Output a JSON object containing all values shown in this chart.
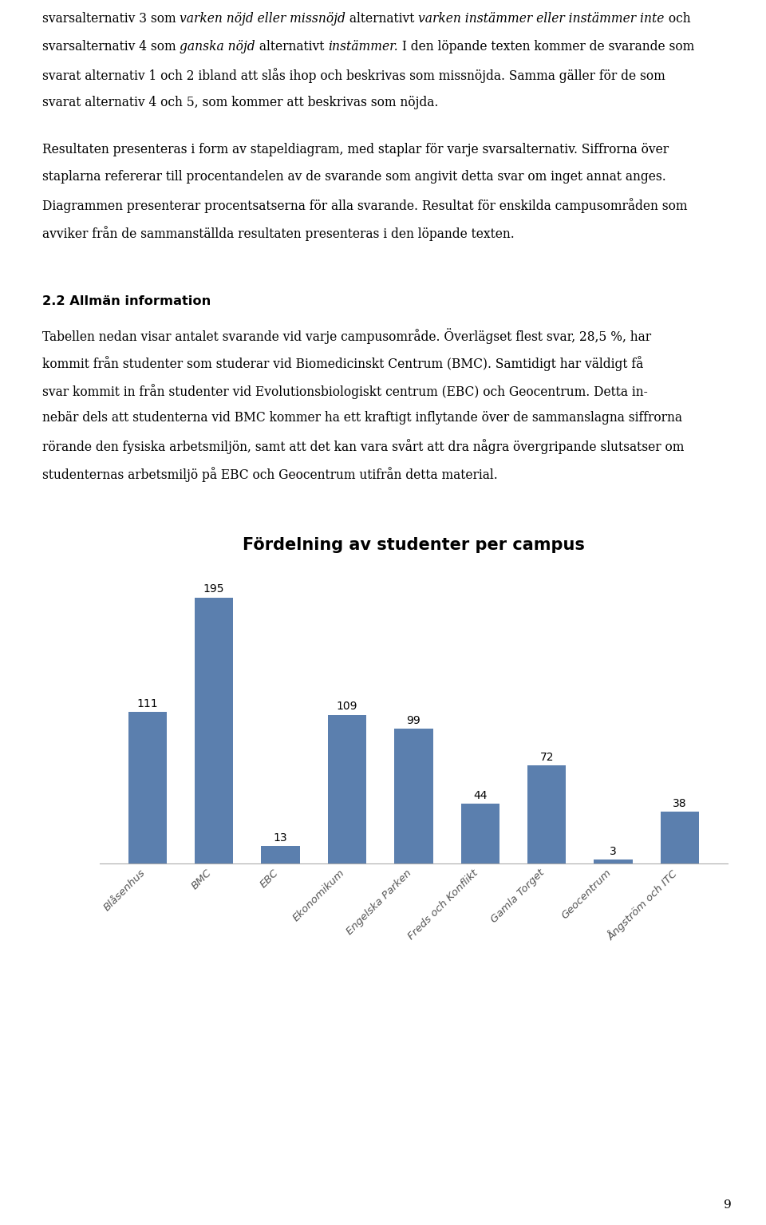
{
  "title": "Fördelning av studenter per campus",
  "categories": [
    "Blåsenhus",
    "BMC",
    "EBC",
    "Ekonomikum",
    "Engelska Parken",
    "Freds och Konflikt",
    "Gamla Torget",
    "Geocentrum",
    "Ångström och ITC"
  ],
  "values": [
    111,
    195,
    13,
    109,
    99,
    44,
    72,
    3,
    38
  ],
  "bar_color": "#5b7fae",
  "background_color": "#ffffff",
  "title_fontsize": 15,
  "tick_fontsize": 9.5,
  "value_fontsize": 10,
  "body_fontsize": 11.2,
  "ylim": [
    0,
    220
  ],
  "figsize": [
    9.6,
    15.35
  ],
  "dpi": 100,
  "page_number": "9"
}
